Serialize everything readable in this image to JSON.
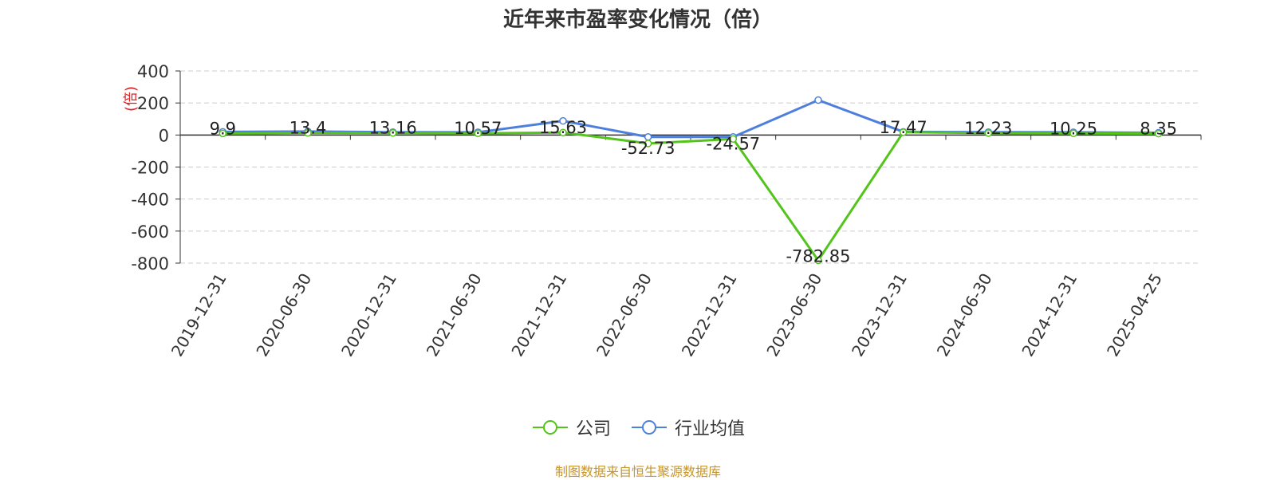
{
  "chart_data": {
    "type": "line",
    "title": "近年来市盈率变化情况（倍）",
    "ylabel": "(倍)",
    "categories": [
      "2019-12-31",
      "2020-06-30",
      "2020-12-31",
      "2021-06-30",
      "2021-12-31",
      "2022-06-30",
      "2022-12-31",
      "2023-06-30",
      "2023-12-31",
      "2024-06-30",
      "2024-12-31",
      "2025-04-25"
    ],
    "yticks": [
      400,
      200,
      0,
      -200,
      -400,
      -600,
      -800
    ],
    "ylim": [
      -800,
      400
    ],
    "grid": true,
    "legend_position": "bottom",
    "series": [
      {
        "name": "公司",
        "color": "#52c41a",
        "values": [
          9.9,
          13.4,
          13.16,
          10.57,
          15.63,
          -52.73,
          -24.57,
          -782.85,
          17.47,
          12.23,
          10.25,
          8.35
        ],
        "labels": [
          "9.9",
          "13.4",
          "13.16",
          "10.57",
          "15.63",
          "-52.73",
          "-24.57",
          "-782.85",
          "17.47",
          "12.23",
          "10.25",
          "8.35"
        ]
      },
      {
        "name": "行业均值",
        "color": "#4e7fdd",
        "values": [
          20,
          22,
          18,
          17,
          88,
          -12,
          -12,
          218,
          20,
          18,
          17,
          14
        ]
      }
    ]
  },
  "source_note": "制图数据来自恒生聚源数据库",
  "source_color": "#c8952a"
}
